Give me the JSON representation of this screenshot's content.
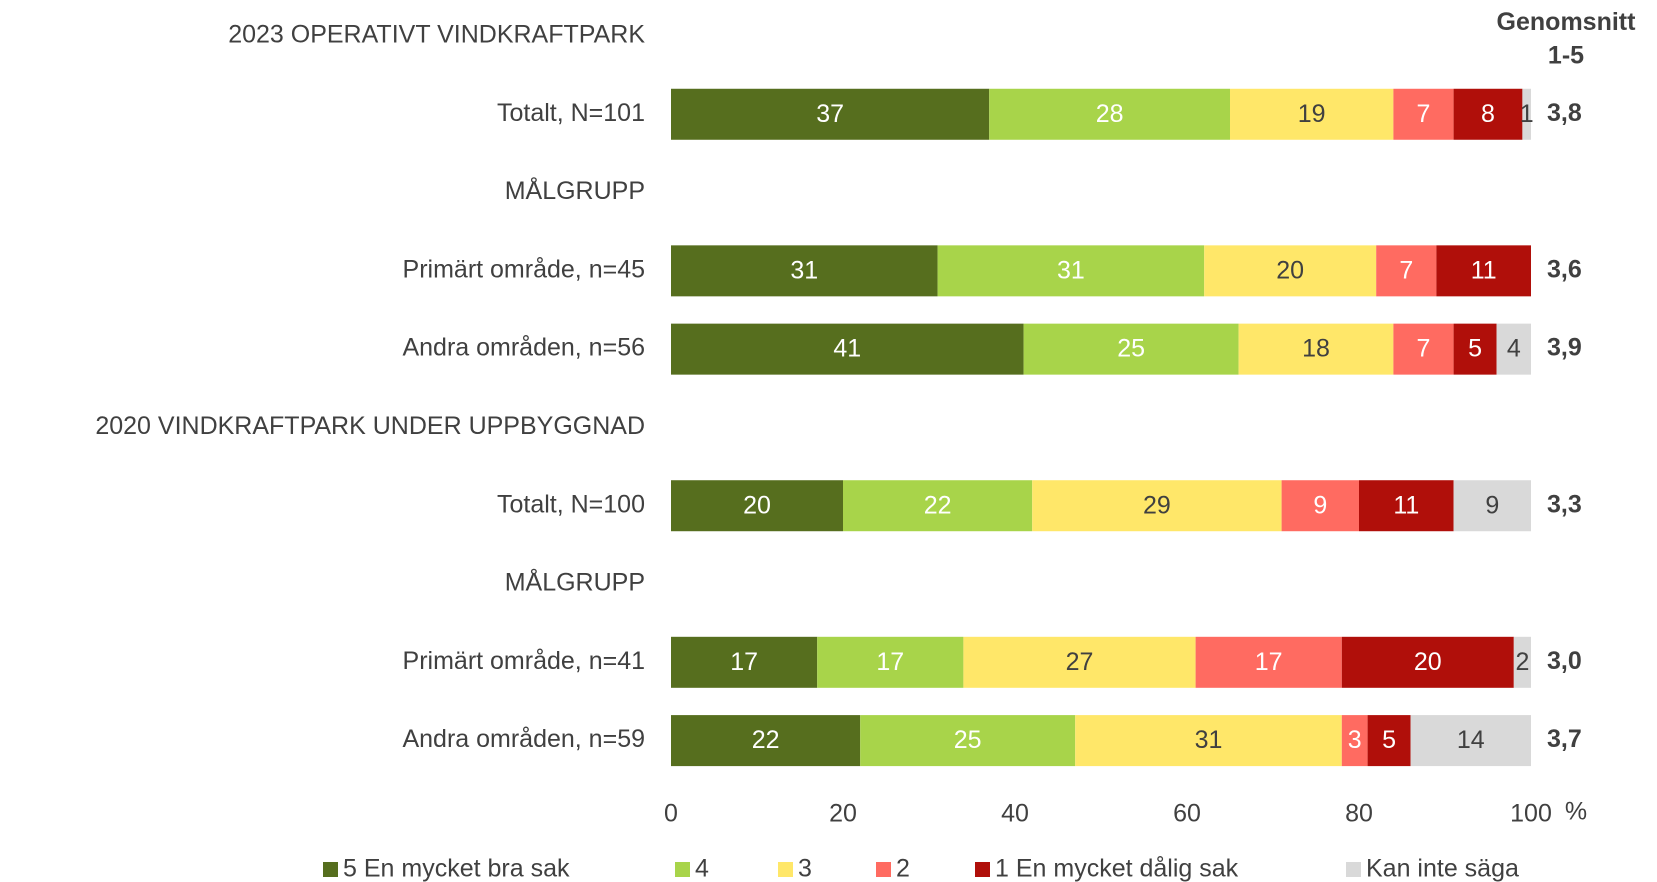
{
  "chart_data": {
    "type": "stacked_barh",
    "categories": [
      "2023 OPERATIVT VINDKRAFTPARK",
      "Totalt, N=101",
      "MÅLGRUPP",
      "Primärt område, n=45",
      "Andra områden, n=56",
      "2020 VINDKRAFTPARK UNDER UPPBYGGNAD",
      "Totalt, N=100",
      "MÅLGRUPP",
      "Primärt område, n=41",
      "Andra områden, n=59"
    ],
    "series": [
      {
        "name": "5 En mycket bra sak",
        "color": "#566e1e",
        "label_color": "#ffffff",
        "values": [
          null,
          37,
          null,
          31,
          41,
          null,
          20,
          null,
          17,
          22
        ]
      },
      {
        "name": "4",
        "color": "#a8d44a",
        "label_color": "#ffffff",
        "values": [
          null,
          28,
          null,
          31,
          25,
          null,
          22,
          null,
          17,
          25
        ]
      },
      {
        "name": "3",
        "color": "#ffe769",
        "label_color": "#404040",
        "values": [
          null,
          19,
          null,
          20,
          18,
          null,
          29,
          null,
          27,
          31
        ]
      },
      {
        "name": "2",
        "color": "#ff6b61",
        "label_color": "#ffffff",
        "values": [
          null,
          7,
          null,
          7,
          7,
          null,
          9,
          null,
          17,
          3
        ]
      },
      {
        "name": "1 En mycket dålig sak",
        "color": "#b00f0a",
        "label_color": "#ffffff",
        "values": [
          null,
          8,
          null,
          11,
          5,
          null,
          11,
          null,
          20,
          5
        ]
      },
      {
        "name": "Kan inte säga",
        "color": "#d9d9d9",
        "label_color": "#404040",
        "values": [
          null,
          1,
          null,
          null,
          4,
          null,
          9,
          null,
          2,
          14
        ]
      }
    ],
    "averages": {
      "title": [
        "Genomsnitt",
        "1-5"
      ],
      "values": [
        null,
        3.8,
        null,
        3.6,
        3.9,
        null,
        3.3,
        null,
        3.0,
        3.7
      ],
      "value_labels": [
        null,
        "3,8",
        null,
        "3,6",
        "3,9",
        null,
        "3,3",
        null,
        "3,0",
        "3,7"
      ]
    },
    "xlim": [
      0,
      100
    ],
    "xticks": [
      0,
      20,
      40,
      60,
      80,
      100
    ],
    "xunit": "%",
    "legend": "bottom"
  }
}
